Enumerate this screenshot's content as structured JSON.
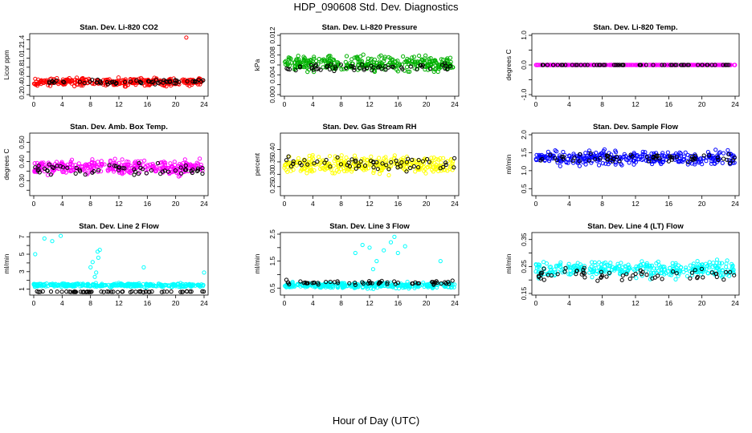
{
  "figure": {
    "title": "HDP_090608  Std. Dev. Diagnostics",
    "xlabel": "Hour of Day (UTC)"
  },
  "chart_data": [
    {
      "type": "scatter",
      "title": "Stan. Dev. Li-820 CO2",
      "xlabel": "",
      "ylabel": "Licor ppm",
      "xlim": [
        0,
        24
      ],
      "ylim": [
        0.2,
        1.5
      ],
      "xticks": [
        0,
        4,
        8,
        12,
        16,
        20,
        24
      ],
      "yticks": [
        0.2,
        0.4,
        0.6,
        0.8,
        1.0,
        1.2,
        1.4
      ],
      "ytick_labels": [
        "0.2",
        "0.4",
        "0.6",
        "0.8",
        "1.0",
        "1.2",
        "1.4"
      ],
      "series": [
        {
          "color": "#ff0000",
          "center": 0.48,
          "spread": 0.12
        },
        {
          "color": "#000000",
          "center": 0.48,
          "spread": 0.07
        }
      ],
      "annotations": [
        {
          "x": 21.5,
          "y": 1.45
        }
      ]
    },
    {
      "type": "scatter",
      "title": "Stan. Dev. Li-820 Pressure",
      "xlabel": "",
      "ylabel": "kPa",
      "xlim": [
        0,
        24
      ],
      "ylim": [
        0,
        0.012
      ],
      "xticks": [
        0,
        4,
        8,
        12,
        16,
        20,
        24
      ],
      "yticks": [
        0,
        0.002,
        0.004,
        0.006,
        0.008,
        0.01,
        0.012
      ],
      "ytick_labels": [
        "0.000",
        "",
        "0.004",
        "",
        "0.008",
        "",
        "0.012"
      ],
      "series": [
        {
          "color": "#00b000",
          "center": 0.0062,
          "spread": 0.0022
        },
        {
          "color": "#000000",
          "center": 0.0055,
          "spread": 0.0012
        }
      ]
    },
    {
      "type": "scatter",
      "title": "Stan. Dev. Li-820 Temp.",
      "xlabel": "",
      "ylabel": "degrees C",
      "xlim": [
        0,
        24
      ],
      "ylim": [
        -1,
        1
      ],
      "xticks": [
        0,
        4,
        8,
        12,
        16,
        20,
        24
      ],
      "yticks": [
        -1,
        -0.5,
        0,
        0.5,
        1
      ],
      "ytick_labels": [
        "-1.0",
        "",
        "0.0",
        "",
        "1.0"
      ],
      "series": [
        {
          "color": "#ff00ff",
          "center": 0,
          "spread": 0
        },
        {
          "color": "#000000",
          "center": 0,
          "spread": 0
        }
      ]
    },
    {
      "type": "scatter",
      "title": "Stan. Dev. Amb. Box Temp.",
      "xlabel": "",
      "ylabel": "degrees C",
      "xlim": [
        0,
        24
      ],
      "ylim": [
        0.23,
        0.54
      ],
      "xticks": [
        0,
        4,
        8,
        12,
        16,
        20,
        24
      ],
      "yticks": [
        0.25,
        0.3,
        0.35,
        0.4,
        0.45,
        0.5
      ],
      "ytick_labels": [
        "",
        "0.30",
        "",
        "0.40",
        "",
        "0.50"
      ],
      "series": [
        {
          "color": "#ff00ff",
          "center": 0.37,
          "spread": 0.055
        },
        {
          "color": "#000000",
          "center": 0.36,
          "spread": 0.04
        }
      ]
    },
    {
      "type": "scatter",
      "title": "Stan. Dev. Gas Stream RH",
      "xlabel": "",
      "ylabel": "percent",
      "xlim": [
        0,
        24
      ],
      "ylim": [
        0.22,
        0.46
      ],
      "xticks": [
        0,
        4,
        8,
        12,
        16,
        20,
        24
      ],
      "yticks": [
        0.25,
        0.3,
        0.35,
        0.4
      ],
      "ytick_labels": [
        "0.25",
        "0.30",
        "0.35",
        "0.40"
      ],
      "series": [
        {
          "color": "#ffff00",
          "center": 0.34,
          "spread": 0.05
        },
        {
          "color": "#000000",
          "center": 0.34,
          "spread": 0.04
        }
      ]
    },
    {
      "type": "scatter",
      "title": "Stan. Dev. Sample Flow",
      "xlabel": "",
      "ylabel": "ml/min",
      "xlim": [
        0,
        24
      ],
      "ylim": [
        0.35,
        2.0
      ],
      "xticks": [
        0,
        4,
        8,
        12,
        16,
        20,
        24
      ],
      "yticks": [
        0.5,
        1.0,
        1.5,
        2.0
      ],
      "ytick_labels": [
        "0.5",
        "1.0",
        "1.5",
        "2.0"
      ],
      "series": [
        {
          "color": "#0000ff",
          "center": 1.35,
          "spread": 0.28
        },
        {
          "color": "#000000",
          "center": 1.35,
          "spread": 0.2
        }
      ]
    },
    {
      "type": "scatter",
      "title": "Stan. Dev. Line 2 Flow",
      "xlabel": "",
      "ylabel": "ml/min",
      "xlim": [
        0,
        24
      ],
      "ylim": [
        0.5,
        7.3
      ],
      "xticks": [
        0,
        4,
        8,
        12,
        16,
        20,
        24
      ],
      "yticks": [
        1,
        2,
        3,
        4,
        5,
        6,
        7
      ],
      "ytick_labels": [
        "1",
        "",
        "3",
        "",
        "5",
        "",
        "7"
      ],
      "series": [
        {
          "color": "#00ffff",
          "center": 1.45,
          "spread": 0.3
        },
        {
          "color": "#000000",
          "center": 0.7,
          "spread": 0.08
        }
      ],
      "annotations": [
        {
          "x": 0.2,
          "y": 5
        },
        {
          "x": 1.5,
          "y": 6.8
        },
        {
          "x": 2.6,
          "y": 6.5
        },
        {
          "x": 3.8,
          "y": 7.1
        },
        {
          "x": 8,
          "y": 3.5
        },
        {
          "x": 8.3,
          "y": 4.1
        },
        {
          "x": 8.6,
          "y": 2.4
        },
        {
          "x": 9,
          "y": 5.3
        },
        {
          "x": 9.3,
          "y": 5.5
        },
        {
          "x": 9.1,
          "y": 4.6
        },
        {
          "x": 8.8,
          "y": 2.9
        },
        {
          "x": 15.5,
          "y": 3.5
        },
        {
          "x": 24,
          "y": 2.9
        }
      ]
    },
    {
      "type": "scatter",
      "title": "Stan. Dev. Line 3 Flow",
      "xlabel": "",
      "ylabel": "ml/min",
      "xlim": [
        0,
        24
      ],
      "ylim": [
        0.3,
        2.5
      ],
      "xticks": [
        0,
        4,
        8,
        12,
        16,
        20,
        24
      ],
      "yticks": [
        0.5,
        1.0,
        1.5,
        2.0,
        2.5
      ],
      "ytick_labels": [
        "0.5",
        "",
        "1.5",
        "",
        "2.5"
      ],
      "series": [
        {
          "color": "#00ffff",
          "center": 0.6,
          "spread": 0.15
        },
        {
          "color": "#000000",
          "center": 0.7,
          "spread": 0.12
        }
      ],
      "annotations": [
        {
          "x": 10,
          "y": 1.8
        },
        {
          "x": 11,
          "y": 2.1
        },
        {
          "x": 12,
          "y": 2.0
        },
        {
          "x": 13,
          "y": 1.5
        },
        {
          "x": 14,
          "y": 1.9
        },
        {
          "x": 15,
          "y": 2.2
        },
        {
          "x": 16,
          "y": 1.8
        },
        {
          "x": 17,
          "y": 2.05
        },
        {
          "x": 12.5,
          "y": 1.2
        },
        {
          "x": 15.5,
          "y": 2.4
        },
        {
          "x": 22,
          "y": 1.5
        }
      ]
    },
    {
      "type": "scatter",
      "title": "Stan. Dev. Line 4 (LT) Flow",
      "xlabel": "",
      "ylabel": "ml/min",
      "xlim": [
        0,
        24
      ],
      "ylim": [
        0.15,
        0.37
      ],
      "xticks": [
        0,
        4,
        8,
        12,
        16,
        20,
        24
      ],
      "yticks": [
        0.15,
        0.2,
        0.25,
        0.3,
        0.35
      ],
      "ytick_labels": [
        "0.15",
        "",
        "0.25",
        "",
        "0.35"
      ],
      "series": [
        {
          "color": "#00ffff",
          "center": 0.24,
          "spread": 0.04
        },
        {
          "color": "#000000",
          "center": 0.22,
          "spread": 0.035
        }
      ]
    }
  ]
}
